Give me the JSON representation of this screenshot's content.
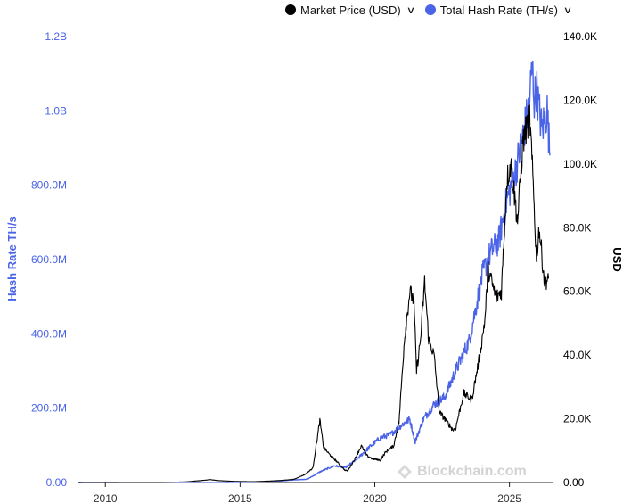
{
  "legend": [
    {
      "label": "Market Price (USD)",
      "color": "#000000"
    },
    {
      "label": "Total Hash Rate (TH/s)",
      "color": "#4a63e7"
    }
  ],
  "watermark": "Blockchain.com",
  "chart_data": {
    "type": "line",
    "title": "",
    "xlabel": "",
    "x_ticks": [
      "2010",
      "2015",
      "2020",
      "2025"
    ],
    "x_tick_years": [
      2010,
      2015,
      2020,
      2025
    ],
    "xlim": [
      2009.0,
      2026.6
    ],
    "left_axis": {
      "label": "Hash Rate TH/s",
      "color": "#4a63e7",
      "ylim": [
        0,
        1200000000
      ],
      "ticks": [
        {
          "value": 0,
          "label": "0.00"
        },
        {
          "value": 200000000,
          "label": "200.0M"
        },
        {
          "value": 400000000,
          "label": "400.0M"
        },
        {
          "value": 600000000,
          "label": "600.0M"
        },
        {
          "value": 800000000,
          "label": "800.0M"
        },
        {
          "value": 1000000000,
          "label": "1.0B"
        },
        {
          "value": 1200000000,
          "label": "1.2B"
        }
      ]
    },
    "right_axis": {
      "label": "USD",
      "color": "#000000",
      "ylim": [
        0,
        140000
      ],
      "ticks": [
        {
          "value": 0,
          "label": "0.00"
        },
        {
          "value": 20000,
          "label": "20.0K"
        },
        {
          "value": 40000,
          "label": "40.0K"
        },
        {
          "value": 60000,
          "label": "60.0K"
        },
        {
          "value": 80000,
          "label": "80.0K"
        },
        {
          "value": 100000,
          "label": "100.0K"
        },
        {
          "value": 120000,
          "label": "120.0K"
        },
        {
          "value": 140000,
          "label": "140.0K"
        }
      ]
    },
    "series": [
      {
        "name": "Market Price (USD)",
        "axis": "right",
        "color": "#000000",
        "x": [
          2009.0,
          2012.0,
          2013.0,
          2013.9,
          2014.2,
          2014.8,
          2015.5,
          2016.0,
          2016.5,
          2017.0,
          2017.4,
          2017.7,
          2017.9,
          2017.96,
          2018.1,
          2018.3,
          2018.6,
          2018.9,
          2019.0,
          2019.3,
          2019.5,
          2019.7,
          2019.9,
          2020.2,
          2020.4,
          2020.7,
          2020.9,
          2021.0,
          2021.1,
          2021.3,
          2021.45,
          2021.55,
          2021.7,
          2021.85,
          2022.0,
          2022.2,
          2022.4,
          2022.6,
          2022.9,
          2023.0,
          2023.3,
          2023.6,
          2023.9,
          2024.1,
          2024.2,
          2024.5,
          2024.7,
          2024.9,
          2025.05,
          2025.3,
          2025.5,
          2025.75,
          2025.9,
          2026.0,
          2026.1,
          2026.3,
          2026.45
        ],
        "y": [
          0,
          10,
          200,
          900,
          600,
          350,
          250,
          430,
          650,
          1000,
          2500,
          4500,
          16000,
          19500,
          11000,
          9000,
          6500,
          3800,
          3700,
          8000,
          11500,
          8500,
          7500,
          7000,
          9500,
          11500,
          19000,
          32000,
          45000,
          60000,
          57000,
          35000,
          45000,
          63000,
          45000,
          40000,
          22000,
          20000,
          16500,
          17000,
          28000,
          26000,
          40000,
          52000,
          67000,
          58000,
          60000,
          95000,
          100000,
          82000,
          107000,
          115000,
          90000,
          70000,
          80000,
          63000,
          64000
        ]
      },
      {
        "name": "Total Hash Rate (TH/s)",
        "axis": "left",
        "color": "#4a63e7",
        "x": [
          2009.0,
          2013.5,
          2014.5,
          2016.0,
          2017.0,
          2017.5,
          2018.0,
          2018.5,
          2018.9,
          2019.3,
          2019.8,
          2020.2,
          2020.6,
          2021.0,
          2021.3,
          2021.5,
          2021.8,
          2022.2,
          2022.6,
          2023.0,
          2023.5,
          2024.0,
          2024.3,
          2024.6,
          2024.9,
          2025.2,
          2025.4,
          2025.7,
          2025.85,
          2025.92,
          2026.0,
          2026.2,
          2026.4,
          2026.5
        ],
        "y": [
          0,
          1000000,
          250000,
          1500000,
          7000000,
          9000000,
          30000000,
          45000000,
          40000000,
          60000000,
          95000000,
          120000000,
          130000000,
          155000000,
          170000000,
          110000000,
          170000000,
          210000000,
          230000000,
          300000000,
          380000000,
          560000000,
          620000000,
          650000000,
          760000000,
          830000000,
          900000000,
          1000000000,
          1120000000,
          1030000000,
          1060000000,
          950000000,
          1000000000,
          880000000
        ]
      }
    ]
  }
}
